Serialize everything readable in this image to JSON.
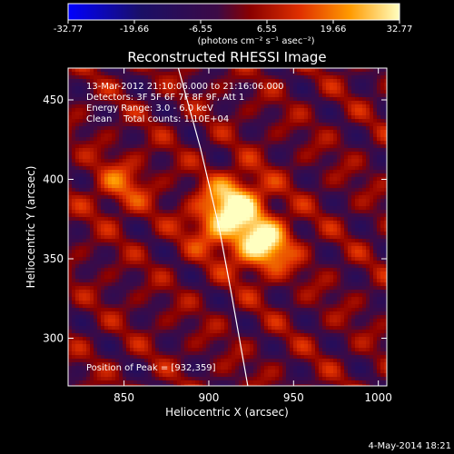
{
  "colorbar": {
    "tick_labels": [
      "-32.77",
      "-19.66",
      "-6.55",
      "6.55",
      "19.66",
      "32.77"
    ],
    "label": "(photons cm⁻² s⁻¹ asec⁻²)"
  },
  "chart_data": {
    "type": "heatmap",
    "title": "Reconstructed RHESSI Image",
    "xlabel": "Heliocentric X (arcsec)",
    "ylabel": "Heliocentric Y (arcsec)",
    "xlim": [
      817,
      1005
    ],
    "ylim": [
      270,
      470
    ],
    "x_ticks": [
      850,
      900,
      950,
      1000
    ],
    "y_ticks": [
      300,
      350,
      400,
      450
    ],
    "colorbar_range": [
      -32.77,
      32.77
    ],
    "info_lines": [
      "13-Mar-2012 21:10:06.000 to 21:16:06.000",
      "Detectors: 3F 5F 6F 7F 8F 9F, Att 1",
      "Energy Range: 3.0 - 6.0 keV",
      "Clean    Total counts: 1.10E+04"
    ],
    "peak_label": "Position of Peak = [932,359]",
    "peak": [
      932,
      359
    ],
    "sources": [
      {
        "x": 932,
        "y": 359,
        "value": 32.77
      },
      {
        "x": 917,
        "y": 387,
        "value": 26
      },
      {
        "x": 905,
        "y": 372,
        "value": 20
      },
      {
        "x": 848,
        "y": 396,
        "value": 14
      }
    ],
    "limb_curve": [
      [
        882,
        470
      ],
      [
        895,
        420
      ],
      [
        906,
        370
      ],
      [
        913,
        330
      ],
      [
        918,
        300
      ],
      [
        923,
        270
      ]
    ]
  },
  "footer": {
    "timestamp": "4-May-2014 18:21"
  }
}
